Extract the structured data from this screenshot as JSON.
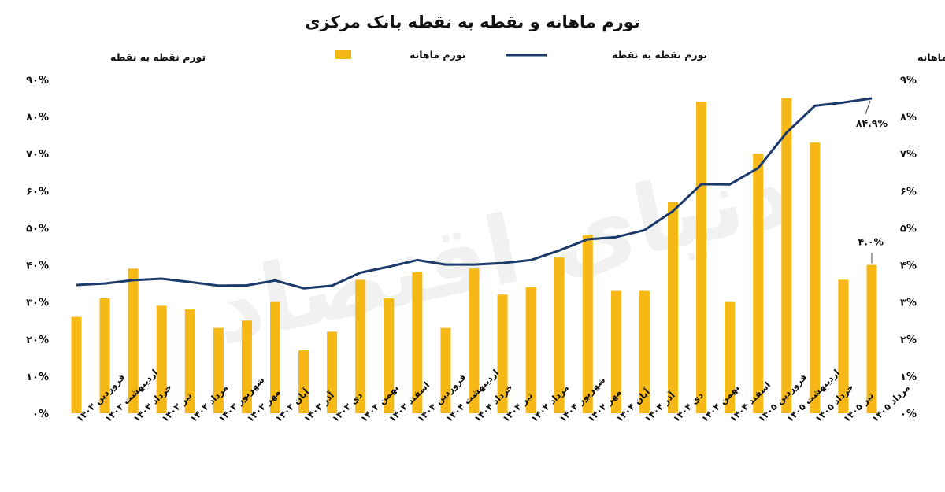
{
  "chart_data": {
    "type": "bar+line",
    "title": "تورم ماهانه و نقطه به نقطه بانک مرکزی",
    "watermark": "دنیای اقتصاد",
    "left_axis": {
      "label": "تورم نقطه به نقطه",
      "ylim": [
        0,
        90
      ],
      "ticks": [
        "۰%",
        "۱۰%",
        "۲۰%",
        "۳۰%",
        "۴۰%",
        "۵۰%",
        "۶۰%",
        "۷۰%",
        "۸۰%",
        "۹۰%"
      ]
    },
    "right_axis": {
      "label": "تورم ماهانه",
      "ylim": [
        0,
        9
      ],
      "ticks": [
        "۰%",
        "۱%",
        "۲%",
        "۳%",
        "۴%",
        "۵%",
        "۶%",
        "۷%",
        "۸%",
        "۹%"
      ]
    },
    "legend": {
      "placement": "top-center",
      "line_label": "تورم نقطه به نقطه",
      "bar_label": "تورم ماهانه"
    },
    "categories": [
      "فروردین ۱۴۰۳",
      "اردیبهشت ۱۴۰۳",
      "خرداد ۱۴۰۳",
      "تیر ۱۴۰۳",
      "مرداد ۱۴۰۳",
      "شهریور ۱۴۰۳",
      "مهر ۱۴۰۳",
      "آبان ۱۴۰۳",
      "آذر ۱۴۰۳",
      "دی ۱۴۰۳",
      "بهمن ۱۴۰۳",
      "اسفند ۱۴۰۳",
      "فروردین ۱۴۰۴",
      "اردیبهشت ۱۴۰۴",
      "خرداد ۱۴۰۴",
      "تیر ۱۴۰۴",
      "مرداد ۱۴۰۴",
      "شهریور ۱۴۰۴",
      "مهر ۱۴۰۴",
      "آبان ۱۴۰۴",
      "آذر ۱۴۰۴",
      "دی ۱۴۰۴",
      "بهمن ۱۴۰۴",
      "اسفند ۱۴۰۴",
      "فروردین ۱۴۰۵",
      "اردیبهشت ۱۴۰۵",
      "خرداد ۱۴۰۵",
      "تیر ۱۴۰۵",
      "مرداد ۱۴۰۵"
    ],
    "series": [
      {
        "name": "تورم ماهانه",
        "type": "bar",
        "axis": "right",
        "color": "#f6b817",
        "values": [
          2.6,
          3.1,
          3.9,
          2.9,
          2.8,
          2.3,
          2.5,
          3.0,
          1.7,
          2.2,
          3.6,
          3.1,
          3.8,
          2.3,
          3.9,
          3.2,
          3.4,
          4.2,
          4.8,
          3.3,
          3.3,
          5.7,
          8.4,
          3.0,
          7.0,
          8.5,
          7.3,
          3.6,
          4.0
        ]
      },
      {
        "name": "تورم نقطه به نقطه",
        "type": "line",
        "axis": "left",
        "color": "#1b3a6b",
        "values": [
          34.6,
          35.0,
          35.9,
          36.3,
          35.4,
          34.4,
          34.5,
          35.8,
          33.7,
          34.4,
          37.9,
          39.5,
          41.3,
          40.1,
          40.1,
          40.5,
          41.3,
          43.9,
          46.9,
          47.5,
          49.4,
          54.5,
          61.8,
          61.7,
          66.1,
          75.7,
          82.9,
          83.8,
          84.9
        ]
      }
    ],
    "annotations": {
      "last_line_label": "۸۴.۹%",
      "last_bar_label": "۴.۰%"
    },
    "grid": false
  }
}
